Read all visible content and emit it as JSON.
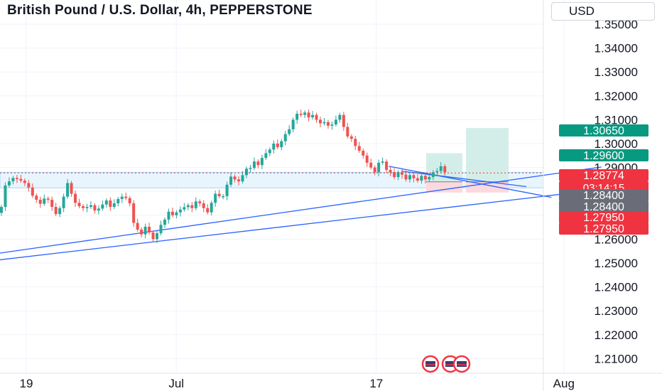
{
  "header": {
    "title": "British Pound / U.S. Dollar, 4h, PEPPERSTONE",
    "currency_button": "USD"
  },
  "colors": {
    "up": "#26a69a",
    "down": "#ef5350",
    "trendline": "#2962ff",
    "zone": "#e3f2fd",
    "profit": "#d3eee9",
    "loss": "#fbd9de",
    "price_badge": "#ef3340",
    "grey_badge": "#6a6d78",
    "green_badge": "#089981"
  },
  "chart_data": {
    "type": "candlestick",
    "symbol": "GBPUSD",
    "timeframe": "4h",
    "source": "PEPPERSTONE",
    "y_range": [
      1.2045,
      1.3605
    ],
    "y_ticks": [
      "1.35000",
      "1.34000",
      "1.33000",
      "1.32000",
      "1.31000",
      "1.30000",
      "1.29000",
      "1.28000",
      "1.27000",
      "1.26000",
      "1.25000",
      "1.24000",
      "1.23000",
      "1.22000",
      "1.21000"
    ],
    "x_ticks": [
      {
        "label": "19",
        "date": "2023-06-19"
      },
      {
        "label": "Jul",
        "date": "2023-07-01"
      },
      {
        "label": "17",
        "date": "2023-07-17"
      },
      {
        "label": "Aug",
        "date": "2023-08-01"
      }
    ],
    "closes": [
      1.2735,
      1.2825,
      1.2842,
      1.2856,
      1.2852,
      1.2845,
      1.2835,
      1.2816,
      1.2782,
      1.2765,
      1.2748,
      1.277,
      1.2765,
      1.2735,
      1.2705,
      1.273,
      1.2778,
      1.2835,
      1.279,
      1.2752,
      1.2738,
      1.273,
      1.2735,
      1.2742,
      1.272,
      1.2728,
      1.2745,
      1.2762,
      1.2735,
      1.275,
      1.2768,
      1.2778,
      1.2772,
      1.275,
      1.2668,
      1.264,
      1.262,
      1.2652,
      1.2628,
      1.26,
      1.2625,
      1.266,
      1.2682,
      1.2715,
      1.27,
      1.2712,
      1.2724,
      1.2734,
      1.2742,
      1.273,
      1.2758,
      1.275,
      1.273,
      1.2712,
      1.2752,
      1.279,
      1.278,
      1.278,
      1.2828,
      1.2862,
      1.285,
      1.2842,
      1.2868,
      1.2895,
      1.2898,
      1.2925,
      1.291,
      1.294,
      1.296,
      1.2975,
      1.3,
      1.2985,
      1.301,
      1.304,
      1.306,
      1.31,
      1.3125,
      1.312,
      1.313,
      1.311,
      1.312,
      1.31,
      1.3085,
      1.309,
      1.3075,
      1.308,
      1.31,
      1.312,
      1.307,
      1.303,
      1.302,
      1.299,
      1.297,
      1.295,
      1.292,
      1.29,
      1.288,
      1.292,
      1.2925,
      1.289,
      1.288,
      1.286,
      1.288,
      1.287,
      1.285,
      1.2868,
      1.2855,
      1.2845,
      1.2865,
      1.285,
      1.286,
      1.288,
      1.2885,
      1.2905,
      1.288
    ],
    "current_price": "1.28774",
    "countdown": "03:14:15",
    "price_labels": [
      {
        "value": "1.30650",
        "style": "green"
      },
      {
        "value": "1.29600",
        "style": "green"
      },
      {
        "value": "1.28774",
        "style": "red"
      },
      {
        "value": "1.28400",
        "style": "grey"
      },
      {
        "value": "1.28400",
        "style": "grey"
      },
      {
        "value": "1.27950",
        "style": "red"
      },
      {
        "value": "1.27950",
        "style": "red"
      }
    ],
    "zone": {
      "from": 1.2815,
      "to": 1.288
    },
    "positions": [
      {
        "entry": 1.284,
        "target": 1.296,
        "stop": 1.2795
      },
      {
        "entry": 1.284,
        "target": 1.3065,
        "stop": 1.2795
      }
    ],
    "trendlines": [
      {
        "from": [
          "2023-06-06",
          1.246
        ],
        "to": [
          "2023-08-04",
          1.2902
        ]
      },
      {
        "from": [
          "2023-06-06",
          1.2447
        ],
        "to": [
          "2023-08-06",
          1.282
        ]
      },
      {
        "from": [
          "2023-07-19",
          1.2885
        ],
        "to": [
          "2023-07-29",
          1.282
        ]
      },
      {
        "from": [
          "2023-07-18",
          1.2905
        ],
        "to": [
          "2023-07-31",
          1.2775
        ]
      }
    ]
  }
}
